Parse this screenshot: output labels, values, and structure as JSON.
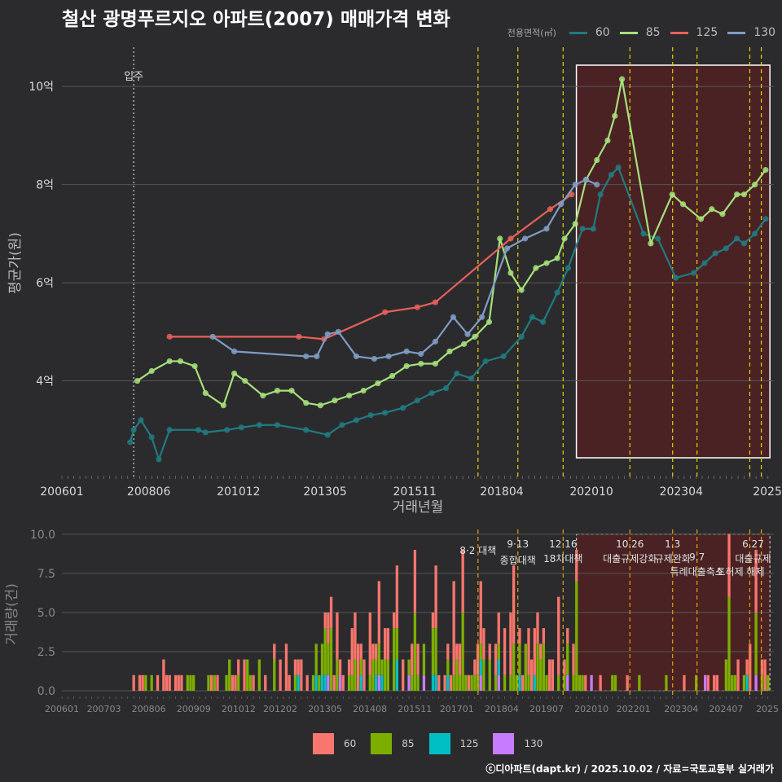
{
  "title": "철산 광명푸르지오 아파트(2007) 매매가격 변화",
  "legend": {
    "title": "전용면적(㎡)",
    "items": [
      {
        "label": "60",
        "color": "#217a80"
      },
      {
        "label": "85",
        "color": "#a6e07a"
      },
      {
        "label": "125",
        "color": "#e8605a"
      },
      {
        "label": "130",
        "color": "#7f9cc4"
      }
    ]
  },
  "bar_legend": [
    {
      "label": "60",
      "color": "#f8766d"
    },
    {
      "label": "85",
      "color": "#7cae00"
    },
    {
      "label": "125",
      "color": "#00bfc4"
    },
    {
      "label": "130",
      "color": "#c77cff"
    }
  ],
  "credit": "ⓒ디아파트(dapt.kr) / 2025.10.02 / 자료=국토교통부 실거래가",
  "chart_data": [
    {
      "type": "line",
      "title": "철산 광명푸르지오 아파트(2007) 매매가격 변화",
      "xlabel": "거래년월",
      "ylabel": "평균가(원)",
      "x_tick_labels": [
        "200601",
        "200806",
        "201012",
        "201305",
        "201511",
        "201804",
        "202010",
        "202304",
        "2025"
      ],
      "y_tick_labels": [
        "4억",
        "6억",
        "8억",
        "10억"
      ],
      "y_ticks": [
        4,
        6,
        8,
        10
      ],
      "ylim": [
        2.0,
        10.8
      ],
      "xlim": [
        2006.0,
        2025.83
      ],
      "unit": "억",
      "move_in_label": "입주",
      "move_in_x": 2008.0,
      "series": [
        {
          "name": "60",
          "x": [
            2007.9,
            2008.0,
            2008.2,
            2008.5,
            2008.7,
            2009.0,
            2009.8,
            2010.0,
            2010.6,
            2011.0,
            2011.5,
            2012.0,
            2012.8,
            2013.4,
            2013.8,
            2014.2,
            2014.6,
            2015.0,
            2015.5,
            2015.9,
            2016.3,
            2016.7,
            2017.0,
            2017.4,
            2017.8,
            2018.3,
            2018.8,
            2019.1,
            2019.4,
            2019.8,
            2020.1,
            2020.5,
            2020.8,
            2021.0,
            2021.3,
            2021.5,
            2022.2,
            2022.6,
            2023.1,
            2023.6,
            2023.9,
            2024.2,
            2024.5,
            2024.8,
            2025.0,
            2025.3,
            2025.6
          ],
          "values": [
            2.75,
            3.0,
            3.2,
            2.85,
            2.4,
            3.0,
            3.0,
            2.95,
            3.0,
            3.05,
            3.1,
            3.1,
            3.0,
            2.9,
            3.1,
            3.2,
            3.3,
            3.35,
            3.45,
            3.6,
            3.75,
            3.85,
            4.15,
            4.05,
            4.4,
            4.5,
            4.9,
            5.3,
            5.2,
            5.8,
            6.3,
            7.1,
            7.1,
            7.8,
            8.2,
            8.35,
            7.0,
            6.9,
            6.1,
            6.2,
            6.4,
            6.6,
            6.7,
            6.9,
            6.8,
            7.0,
            7.3
          ]
        },
        {
          "name": "85",
          "x": [
            2008.1,
            2008.5,
            2009.0,
            2009.3,
            2009.7,
            2010.0,
            2010.5,
            2010.8,
            2011.1,
            2011.6,
            2012.0,
            2012.4,
            2012.8,
            2013.2,
            2013.6,
            2014.0,
            2014.4,
            2014.8,
            2015.2,
            2015.6,
            2016.0,
            2016.4,
            2016.8,
            2017.2,
            2017.5,
            2017.9,
            2018.2,
            2018.5,
            2018.8,
            2019.2,
            2019.5,
            2019.8,
            2020.0,
            2020.3,
            2020.6,
            2020.9,
            2021.2,
            2021.4,
            2021.6,
            2022.4,
            2023.0,
            2023.3,
            2023.8,
            2024.1,
            2024.4,
            2024.8,
            2025.0,
            2025.3,
            2025.6
          ],
          "values": [
            4.0,
            4.2,
            4.4,
            4.4,
            4.3,
            3.75,
            3.5,
            4.15,
            4.0,
            3.7,
            3.8,
            3.8,
            3.55,
            3.5,
            3.6,
            3.7,
            3.8,
            3.95,
            4.1,
            4.3,
            4.35,
            4.35,
            4.6,
            4.75,
            4.9,
            5.2,
            6.9,
            6.2,
            5.85,
            6.3,
            6.4,
            6.5,
            6.9,
            7.2,
            8.1,
            8.5,
            8.9,
            9.4,
            10.15,
            6.8,
            7.8,
            7.6,
            7.3,
            7.5,
            7.4,
            7.8,
            7.8,
            8.0,
            8.3
          ]
        },
        {
          "name": "125",
          "x": [
            2009.0,
            2012.6,
            2013.3,
            2015.0,
            2015.9,
            2016.4,
            2018.5,
            2019.6,
            2020.2
          ],
          "values": [
            4.9,
            4.9,
            4.85,
            5.4,
            5.5,
            5.6,
            6.9,
            7.5,
            7.8
          ]
        },
        {
          "name": "130",
          "x": [
            2010.2,
            2010.8,
            2012.8,
            2013.1,
            2013.4,
            2013.7,
            2014.2,
            2014.7,
            2015.1,
            2015.6,
            2016.0,
            2016.4,
            2016.9,
            2017.3,
            2017.7,
            2018.4,
            2018.9,
            2019.5,
            2019.9,
            2020.3,
            2020.6,
            2020.9
          ],
          "values": [
            4.9,
            4.6,
            4.5,
            4.5,
            4.95,
            5.0,
            4.5,
            4.45,
            4.5,
            4.6,
            4.55,
            4.8,
            5.3,
            4.95,
            5.3,
            6.7,
            6.9,
            7.1,
            7.6,
            8.0,
            8.1,
            8.0
          ]
        }
      ],
      "policy_lines": [
        2017.59,
        2018.7,
        2019.96,
        2021.82,
        2023.01,
        2023.69,
        2025.16,
        2025.48
      ],
      "highlight_range": [
        2020.33,
        2025.72
      ]
    },
    {
      "type": "bar",
      "ylabel": "거래량(건)",
      "x_tick_labels": [
        "200601",
        "200703",
        "200806",
        "200909",
        "201012",
        "201202",
        "201305",
        "201408",
        "201511",
        "201701",
        "201804",
        "201907",
        "202010",
        "202201",
        "202304",
        "202407",
        "2025"
      ],
      "y_tick_labels": [
        "0.0",
        "2.5",
        "5.0",
        "7.5",
        "10.0"
      ],
      "y_ticks": [
        0,
        2.5,
        5.0,
        7.5,
        10.0
      ],
      "ylim": [
        0,
        10.3
      ],
      "peak_months": [
        {
          "x": 2013.5,
          "v": 6
        },
        {
          "x": 2014.8,
          "v": 7
        },
        {
          "x": 2015.3,
          "v": 8
        },
        {
          "x": 2015.8,
          "v": 9
        },
        {
          "x": 2016.4,
          "v": 8
        },
        {
          "x": 2016.9,
          "v": 7
        },
        {
          "x": 2017.2,
          "v": 9
        },
        {
          "x": 2017.7,
          "v": 7
        },
        {
          "x": 2018.2,
          "v": 5
        },
        {
          "x": 2018.6,
          "v": 8
        },
        {
          "x": 2019.8,
          "v": 6
        },
        {
          "x": 2020.3,
          "v": 9
        },
        {
          "x": 2024.6,
          "v": 10
        },
        {
          "x": 2025.3,
          "v": 9
        }
      ],
      "annotations": [
        {
          "date": "8·2",
          "text": "8·2 대책"
        },
        {
          "date": "9·13",
          "text": "종합대책"
        },
        {
          "date": "12·16",
          "text": "18차대책"
        },
        {
          "date": "10.26",
          "text": "대출규제강화"
        },
        {
          "date": "1.3",
          "text": "규제완화"
        },
        {
          "date": "9.7",
          "text": "특례대출축소"
        },
        {
          "date": "6.27",
          "text": "대출규제"
        },
        {
          "date": "",
          "text": "토허제 해제"
        }
      ]
    }
  ]
}
